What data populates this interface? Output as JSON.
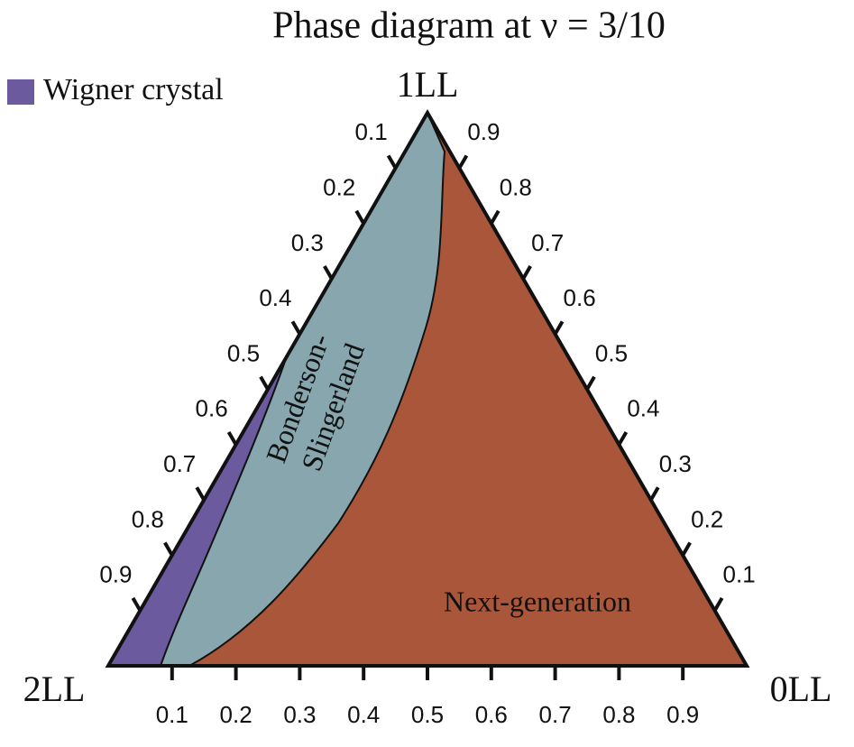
{
  "chart_data": {
    "type": "ternary",
    "title": "Phase diagram at ν = 3/10",
    "vertices": {
      "top": "1LL",
      "left": "2LL",
      "right": "0LL"
    },
    "left_ticks": [
      0.1,
      0.2,
      0.3,
      0.4,
      0.5,
      0.6,
      0.7,
      0.8,
      0.9
    ],
    "right_ticks": [
      0.9,
      0.8,
      0.7,
      0.6,
      0.5,
      0.4,
      0.3,
      0.2,
      0.1
    ],
    "bottom_ticks": [
      0.1,
      0.2,
      0.3,
      0.4,
      0.5,
      0.6,
      0.7,
      0.8,
      0.9
    ],
    "regions": [
      {
        "label": "Wigner crystal",
        "color": "#6b5a9e"
      },
      {
        "label": [
          "Bonderson-",
          "Slingerland"
        ],
        "color": "#87a6ae"
      },
      {
        "label": "Next-generation",
        "color": "#a9563a"
      }
    ]
  }
}
